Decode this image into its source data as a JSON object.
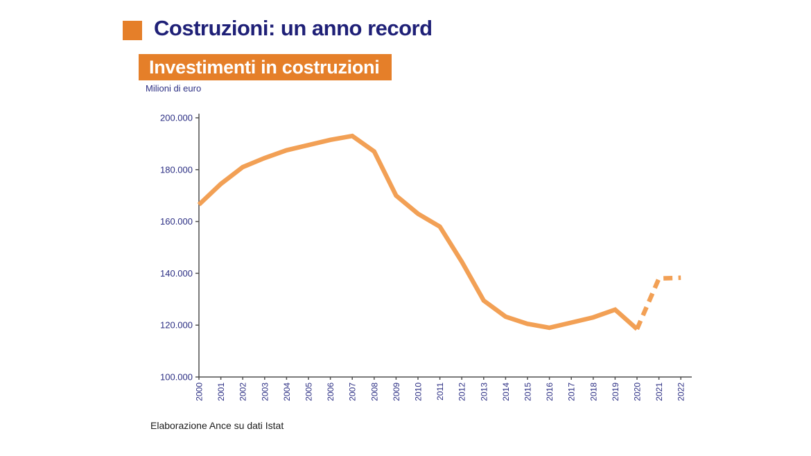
{
  "header": {
    "title": "Costruzioni: un anno record",
    "title_color": "#1F2077",
    "accent_color": "#E57F29"
  },
  "banner": {
    "label": "Investimenti in costruzioni",
    "bg": "#E57F29",
    "text_color": "#FFFFFF"
  },
  "chart": {
    "unit_label": "Milioni di euro",
    "source_note": "Elaborazione Ance su dati Istat"
  },
  "chart_data": {
    "type": "line",
    "title": "Investimenti in costruzioni",
    "ylabel": "Milioni di euro",
    "xlabel": "",
    "x": [
      2000,
      2001,
      2002,
      2003,
      2004,
      2005,
      2006,
      2007,
      2008,
      2009,
      2010,
      2011,
      2012,
      2013,
      2014,
      2015,
      2016,
      2017,
      2018,
      2019,
      2020,
      2021,
      2022
    ],
    "series": [
      {
        "name": "Investimenti in costruzioni",
        "values": [
          166500,
          174500,
          181000,
          184500,
          187500,
          189500,
          191500,
          193000,
          187000,
          170000,
          163000,
          158000,
          144500,
          129500,
          123300,
          120500,
          119000,
          121000,
          123000,
          126000,
          118500,
          138000,
          138300
        ]
      }
    ],
    "dashed_from_year": 2020,
    "ylim": [
      100000,
      200000
    ],
    "yticks": [
      {
        "value": 200000,
        "label": "200.000"
      },
      {
        "value": 180000,
        "label": "180.000"
      },
      {
        "value": 160000,
        "label": "160.000"
      },
      {
        "value": 140000,
        "label": "140.000"
      },
      {
        "value": 120000,
        "label": "120.000"
      },
      {
        "value": 100000,
        "label": "100.000"
      }
    ],
    "grid": false,
    "legend_position": "none",
    "line_color": "#F2A055",
    "axis_color": "#4D4D4D",
    "tick_label_color": "#2B2E83"
  }
}
